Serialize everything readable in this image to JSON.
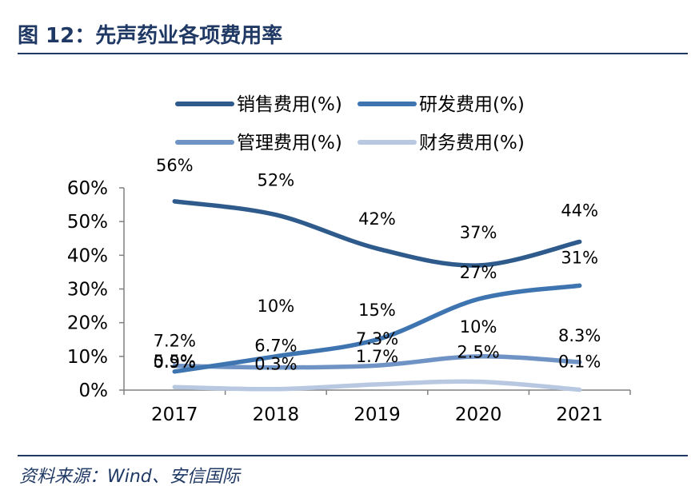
{
  "figure": {
    "title": "图 12：先声药业各项费用率",
    "source": "资料来源：Wind、安信国际"
  },
  "colors": {
    "title": "#1f3864",
    "axis": "#808080",
    "text": "#000000"
  },
  "chart_data": {
    "type": "line",
    "categories": [
      "2017",
      "2018",
      "2019",
      "2020",
      "2021"
    ],
    "ylim": [
      0,
      60
    ],
    "yticks": [
      "0%",
      "10%",
      "20%",
      "30%",
      "40%",
      "50%",
      "60%"
    ],
    "grid": false,
    "legend_position": "top",
    "smooth": true,
    "series": [
      {
        "name": "销售费用(%)",
        "color": "#2e5a8c",
        "values": [
          56,
          52,
          42,
          37,
          44
        ],
        "labels": [
          "56%",
          "52%",
          "42%",
          "37%",
          "44%"
        ]
      },
      {
        "name": "研发费用(%)",
        "color": "#3e74b0",
        "values": [
          5.5,
          10,
          15,
          27,
          31
        ],
        "labels": [
          "5.5%",
          "10%",
          "15%",
          "27%",
          "31%"
        ]
      },
      {
        "name": "管理费用(%)",
        "color": "#6f93c4",
        "values": [
          7.2,
          6.7,
          7.3,
          10,
          8.3
        ],
        "labels": [
          "7.2%",
          "6.7%",
          "7.3%",
          "10%",
          "8.3%"
        ]
      },
      {
        "name": "财务费用(%)",
        "color": "#b8c8e0",
        "values": [
          0.9,
          0.3,
          1.7,
          2.5,
          0.1
        ],
        "labels": [
          "0.9%",
          "0.3%",
          "1.7%",
          "2.5%",
          "0.1%"
        ]
      }
    ]
  }
}
